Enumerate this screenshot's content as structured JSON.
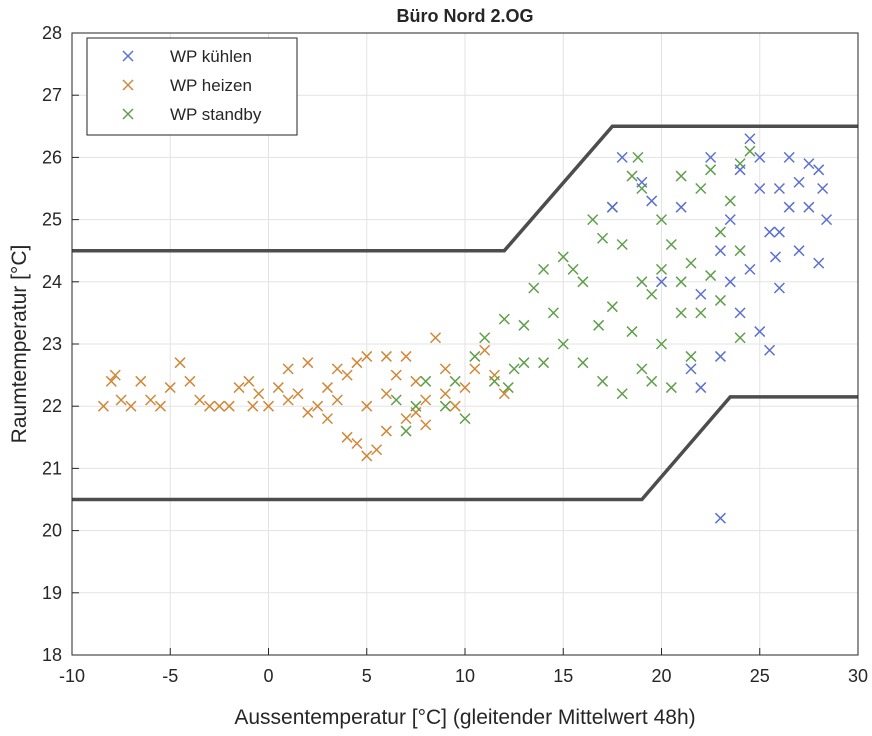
{
  "chart_data": {
    "type": "scatter",
    "title": "Büro Nord 2.OG",
    "xlabel": "Aussentemperatur [°C] (gleitender Mittelwert 48h)",
    "ylabel": "Raumtemperatur [°C]",
    "xlim": [
      -10,
      30
    ],
    "ylim": [
      18,
      28
    ],
    "xticks": [
      -10,
      -5,
      0,
      5,
      10,
      15,
      20,
      25,
      30
    ],
    "yticks": [
      18,
      19,
      20,
      21,
      22,
      23,
      24,
      25,
      26,
      27,
      28
    ],
    "grid": true,
    "legend_position": "top-left",
    "marker": "x",
    "series": [
      {
        "name": "WP kühlen",
        "color": "#5b70d1",
        "points": [
          [
            17.5,
            25.2
          ],
          [
            18,
            26.0
          ],
          [
            19,
            25.6
          ],
          [
            19.5,
            25.3
          ],
          [
            20,
            24.0
          ],
          [
            21,
            25.2
          ],
          [
            21.5,
            22.6
          ],
          [
            22,
            22.3
          ],
          [
            22,
            23.8
          ],
          [
            22.5,
            26.0
          ],
          [
            23,
            24.5
          ],
          [
            23,
            22.8
          ],
          [
            23.5,
            25.0
          ],
          [
            23.5,
            24.0
          ],
          [
            24,
            25.8
          ],
          [
            24,
            23.5
          ],
          [
            24.5,
            26.3
          ],
          [
            24.5,
            24.2
          ],
          [
            25,
            25.5
          ],
          [
            25,
            23.2
          ],
          [
            25.5,
            24.8
          ],
          [
            25.5,
            22.9
          ],
          [
            25,
            26.0
          ],
          [
            26,
            25.5
          ],
          [
            26,
            24.8
          ],
          [
            26.5,
            25.2
          ],
          [
            26.5,
            26.0
          ],
          [
            27,
            25.6
          ],
          [
            27,
            24.5
          ],
          [
            27.5,
            25.9
          ],
          [
            27.5,
            25.2
          ],
          [
            28,
            24.3
          ],
          [
            28,
            25.8
          ],
          [
            28.2,
            25.5
          ],
          [
            28.4,
            25.0
          ],
          [
            26,
            23.9
          ],
          [
            25.8,
            24.4
          ],
          [
            23,
            20.2
          ]
        ]
      },
      {
        "name": "WP heizen",
        "color": "#d08838",
        "points": [
          [
            -8.4,
            22.0
          ],
          [
            -8,
            22.4
          ],
          [
            -7.5,
            22.1
          ],
          [
            -7,
            22.0
          ],
          [
            -6.5,
            22.4
          ],
          [
            -6,
            22.1
          ],
          [
            -5.5,
            22.0
          ],
          [
            -5,
            22.3
          ],
          [
            -4.5,
            22.7
          ],
          [
            -4,
            22.4
          ],
          [
            -3.5,
            22.1
          ],
          [
            -3,
            22.0
          ],
          [
            -2.5,
            22.0
          ],
          [
            -2,
            22.0
          ],
          [
            -1.5,
            22.3
          ],
          [
            -1,
            22.4
          ],
          [
            -0.5,
            22.2
          ],
          [
            0,
            22.0
          ],
          [
            0.5,
            22.3
          ],
          [
            1,
            22.6
          ],
          [
            1.5,
            22.2
          ],
          [
            2,
            22.7
          ],
          [
            2.5,
            22.0
          ],
          [
            3,
            21.8
          ],
          [
            3.5,
            22.1
          ],
          [
            4,
            21.5
          ],
          [
            4.5,
            21.4
          ],
          [
            5,
            21.2
          ],
          [
            5.5,
            21.3
          ],
          [
            6,
            21.6
          ],
          [
            5,
            22.8
          ],
          [
            6,
            22.8
          ],
          [
            7,
            22.8
          ],
          [
            7.5,
            22.4
          ],
          [
            8,
            22.1
          ],
          [
            8.5,
            23.1
          ],
          [
            9,
            22.6
          ],
          [
            9.5,
            22.0
          ],
          [
            10,
            22.3
          ],
          [
            10.5,
            22.6
          ],
          [
            11,
            22.9
          ],
          [
            11.5,
            22.5
          ],
          [
            12,
            22.2
          ],
          [
            3,
            22.3
          ],
          [
            4,
            22.5
          ],
          [
            5,
            22.0
          ],
          [
            6,
            22.2
          ],
          [
            7,
            21.8
          ],
          [
            8,
            21.7
          ],
          [
            9,
            22.2
          ],
          [
            4.5,
            22.7
          ],
          [
            3.5,
            22.6
          ],
          [
            2,
            21.9
          ],
          [
            1,
            22.1
          ],
          [
            -7.8,
            22.5
          ],
          [
            -0.8,
            22.0
          ],
          [
            6.5,
            22.5
          ],
          [
            7.5,
            21.9
          ]
        ]
      },
      {
        "name": "WP standby",
        "color": "#5f9f4a",
        "points": [
          [
            6.5,
            22.1
          ],
          [
            7,
            21.6
          ],
          [
            7.5,
            22.0
          ],
          [
            8,
            22.4
          ],
          [
            9,
            22.0
          ],
          [
            9.5,
            22.4
          ],
          [
            10,
            21.8
          ],
          [
            10.5,
            22.8
          ],
          [
            11,
            23.1
          ],
          [
            11.5,
            22.4
          ],
          [
            12,
            23.4
          ],
          [
            12.5,
            22.6
          ],
          [
            13,
            23.3
          ],
          [
            13.5,
            23.9
          ],
          [
            14,
            22.7
          ],
          [
            14.5,
            23.5
          ],
          [
            15,
            23.0
          ],
          [
            15,
            24.4
          ],
          [
            15.5,
            24.2
          ],
          [
            16,
            22.7
          ],
          [
            16,
            24.0
          ],
          [
            16.5,
            25.0
          ],
          [
            16.8,
            23.3
          ],
          [
            17,
            22.4
          ],
          [
            17,
            24.7
          ],
          [
            17.5,
            23.6
          ],
          [
            17.5,
            25.2
          ],
          [
            18,
            22.2
          ],
          [
            18,
            24.6
          ],
          [
            18.5,
            23.2
          ],
          [
            18.5,
            25.7
          ],
          [
            19,
            22.6
          ],
          [
            19,
            24.0
          ],
          [
            19,
            25.5
          ],
          [
            19.5,
            23.8
          ],
          [
            19.5,
            22.4
          ],
          [
            20,
            24.2
          ],
          [
            20,
            25.0
          ],
          [
            20,
            23.0
          ],
          [
            20.5,
            22.3
          ],
          [
            20.5,
            24.6
          ],
          [
            21,
            23.5
          ],
          [
            21,
            24.0
          ],
          [
            21,
            25.7
          ],
          [
            21.5,
            22.8
          ],
          [
            21.5,
            24.3
          ],
          [
            22,
            25.5
          ],
          [
            22,
            23.5
          ],
          [
            22.5,
            24.1
          ],
          [
            22.5,
            25.8
          ],
          [
            23,
            23.7
          ],
          [
            23,
            24.8
          ],
          [
            23.5,
            25.3
          ],
          [
            24,
            24.5
          ],
          [
            24,
            25.9
          ],
          [
            24.5,
            26.1
          ],
          [
            24,
            23.1
          ],
          [
            13,
            22.7
          ],
          [
            14,
            24.2
          ],
          [
            12.2,
            22.3
          ],
          [
            18.8,
            26.0
          ]
        ]
      }
    ],
    "limit_lines": {
      "color": "#4d4d4d",
      "upper": [
        [
          -10,
          24.5
        ],
        [
          12,
          24.5
        ],
        [
          17.5,
          26.5
        ],
        [
          30,
          26.5
        ]
      ],
      "lower": [
        [
          -10,
          20.5
        ],
        [
          19,
          20.5
        ],
        [
          23.5,
          22.15
        ],
        [
          30,
          22.15
        ]
      ]
    }
  }
}
